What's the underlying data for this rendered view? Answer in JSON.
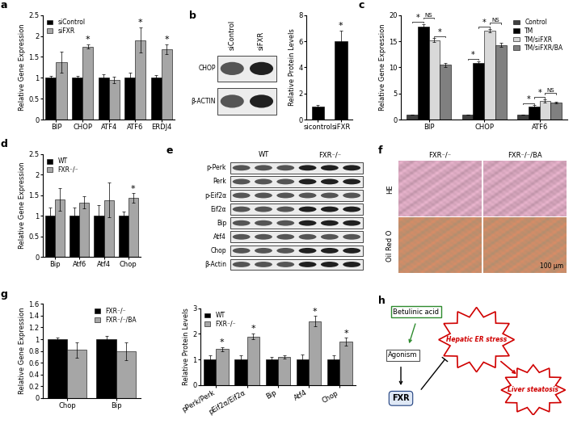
{
  "chart_data": [
    {
      "type": "bar",
      "title": "a",
      "ylabel": "Relative Gene Expression",
      "categories": [
        "BIP",
        "CHOP",
        "ATF4",
        "ATF6",
        "ERDJ4"
      ],
      "series": [
        {
          "name": "siControl",
          "color": "#000000",
          "values": [
            1,
            1,
            1,
            1,
            1
          ],
          "errors": [
            0.05,
            0.05,
            0.08,
            0.12,
            0.06
          ]
        },
        {
          "name": "siFXR",
          "color": "#a6a6a6",
          "values": [
            1.38,
            1.75,
            0.95,
            1.9,
            1.68
          ],
          "errors": [
            0.25,
            0.05,
            0.07,
            0.3,
            0.12
          ]
        }
      ],
      "annotations": [
        {
          "text": "*",
          "category": "CHOP",
          "series": "siFXR"
        },
        {
          "text": "*",
          "category": "ATF6",
          "series": "siFXR"
        },
        {
          "text": "*",
          "category": "ERDJ4",
          "series": "siFXR"
        }
      ],
      "ylim": [
        0,
        2.5
      ],
      "yticks": [
        0,
        0.5,
        1,
        1.5,
        2,
        2.5
      ],
      "legend": "upper left"
    },
    {
      "type": "bar",
      "ylabel": "Relative Protein Levels",
      "categories": [
        "sicontrol",
        "siFXR"
      ],
      "values": [
        1,
        6
      ],
      "errors": [
        0.15,
        0.8
      ],
      "color": "#000000",
      "annotations": [
        {
          "text": "*",
          "category": "siFXR"
        }
      ],
      "ylim": [
        0,
        8
      ],
      "yticks": [
        0,
        2,
        4,
        6,
        8
      ]
    },
    {
      "type": "bar",
      "title": "c",
      "ylabel": "Relative Gene Expression",
      "categories": [
        "BIP",
        "CHOP",
        "ATF6"
      ],
      "series": [
        {
          "name": "Control",
          "color": "#404040",
          "values": [
            1,
            1,
            1
          ],
          "errors": [
            0.05,
            0.05,
            0.05
          ]
        },
        {
          "name": "TM",
          "color": "#000000",
          "values": [
            17.8,
            10.8,
            2.5
          ],
          "errors": [
            0.5,
            0.4,
            0.3
          ]
        },
        {
          "name": "TM/siFXR",
          "color": "#d9d9d9",
          "values": [
            15.2,
            17,
            3.6
          ],
          "errors": [
            0.4,
            0.3,
            0.3
          ]
        },
        {
          "name": "TM/siFXR/BA",
          "color": "#808080",
          "values": [
            10.5,
            14.3,
            3.3
          ],
          "errors": [
            0.4,
            0.4,
            0.2
          ]
        }
      ],
      "comparisons": [
        {
          "category": "BIP",
          "from": "Control",
          "to": "TM",
          "text": "*"
        },
        {
          "category": "BIP",
          "from": "TM",
          "to": "TM/siFXR",
          "text": "NS"
        },
        {
          "category": "BIP",
          "from": "TM/siFXR",
          "to": "TM/siFXR/BA",
          "text": "*"
        },
        {
          "category": "CHOP",
          "from": "Control",
          "to": "TM",
          "text": "*"
        },
        {
          "category": "CHOP",
          "from": "TM",
          "to": "TM/siFXR",
          "text": "*"
        },
        {
          "category": "CHOP",
          "from": "TM/siFXR",
          "to": "TM/siFXR/BA",
          "text": "NS"
        },
        {
          "category": "ATF6",
          "from": "Control",
          "to": "TM",
          "text": "*"
        },
        {
          "category": "ATF6",
          "from": "TM",
          "to": "TM/siFXR",
          "text": "*"
        },
        {
          "category": "ATF6",
          "from": "TM/siFXR",
          "to": "TM/siFXR/BA",
          "text": "NS"
        }
      ],
      "ylim": [
        0,
        20
      ],
      "yticks": [
        0,
        5,
        10,
        15,
        20
      ],
      "legend": "upper right"
    },
    {
      "type": "bar",
      "title": "d",
      "ylabel": "Relative Gene Expression",
      "categories": [
        "Bip",
        "Atf6",
        "Atf4",
        "Chop"
      ],
      "series": [
        {
          "name": "WT",
          "color": "#000000",
          "values": [
            1,
            1,
            1,
            1
          ],
          "errors": [
            0.2,
            0.2,
            0.25,
            0.1
          ]
        },
        {
          "name": "FXR⁻/⁻",
          "color": "#a6a6a6",
          "values": [
            1.4,
            1.32,
            1.38,
            1.43
          ],
          "errors": [
            0.28,
            0.15,
            0.42,
            0.12
          ]
        }
      ],
      "annotations": [
        {
          "text": "*",
          "category": "Chop",
          "series": "FXR⁻/⁻"
        }
      ],
      "ylim": [
        0,
        2.5
      ],
      "yticks": [
        0,
        0.5,
        1,
        1.5,
        2,
        2.5
      ],
      "legend": "upper left"
    },
    {
      "type": "bar",
      "ylabel": "Relative Protein Levels",
      "categories": [
        "pPerk/Perk",
        "pEif2α/Eif2α",
        "Bip",
        "Atf4",
        "Chop"
      ],
      "series": [
        {
          "name": "WT",
          "color": "#000000",
          "values": [
            1,
            1,
            1,
            1,
            1
          ],
          "errors": [
            0.15,
            0.15,
            0.1,
            0.2,
            0.15
          ]
        },
        {
          "name": "FXR⁻/⁻",
          "color": "#a6a6a6",
          "values": [
            1.4,
            1.9,
            1.1,
            2.5,
            1.7
          ],
          "errors": [
            0.08,
            0.12,
            0.05,
            0.2,
            0.15
          ]
        }
      ],
      "annotations": [
        {
          "text": "*",
          "category": "pPerk/Perk",
          "series": "FXR⁻/⁻"
        },
        {
          "text": "*",
          "category": "pEif2α/Eif2α",
          "series": "FXR⁻/⁻"
        },
        {
          "text": "*",
          "category": "Atf4",
          "series": "FXR⁻/⁻"
        },
        {
          "text": "*",
          "category": "Chop",
          "series": "FXR⁻/⁻"
        }
      ],
      "ylim": [
        0,
        3
      ],
      "yticks": [
        0,
        1,
        2,
        3
      ],
      "legend": "upper left"
    },
    {
      "type": "bar",
      "title": "g",
      "ylabel": "Relative Gene Expression",
      "categories": [
        "Chop",
        "Bip"
      ],
      "series": [
        {
          "name": "FXR⁻/⁻",
          "color": "#000000",
          "values": [
            1,
            1
          ],
          "errors": [
            0.03,
            0.05
          ]
        },
        {
          "name": "FXR⁻/⁻/BA",
          "color": "#a6a6a6",
          "values": [
            0.82,
            0.8
          ],
          "errors": [
            0.13,
            0.15
          ]
        }
      ],
      "ylim": [
        0,
        1.6
      ],
      "yticks": [
        0,
        0.2,
        0.4,
        0.6,
        0.8,
        1,
        1.2,
        1.4,
        1.6
      ],
      "legend": "upper right"
    }
  ],
  "blots": [
    {
      "panel": "b",
      "lanes": [
        "siControl",
        "siFXR"
      ],
      "rows": [
        "CHOP",
        "β-ACTIN"
      ]
    },
    {
      "panel": "e",
      "lanes": [
        "WT",
        "FXR⁻/⁻"
      ],
      "rows": [
        "p-Perk",
        "Perk",
        "p-Eif2α",
        "Eif2α",
        "Bip",
        "Atf4",
        "Chop",
        "β-Actin"
      ]
    }
  ],
  "histology": {
    "panel": "f",
    "columns": [
      "FXR⁻/⁻",
      "FXR⁻/⁻/BA"
    ],
    "rows": [
      "HE",
      "Oil Red O"
    ],
    "scale_bar": "100 μm"
  },
  "diagram": {
    "panel": "h",
    "nodes": [
      "Betulinic acid",
      "Agonism",
      "FXR",
      "Hepatic ER stress",
      "Liver steatosis"
    ]
  }
}
